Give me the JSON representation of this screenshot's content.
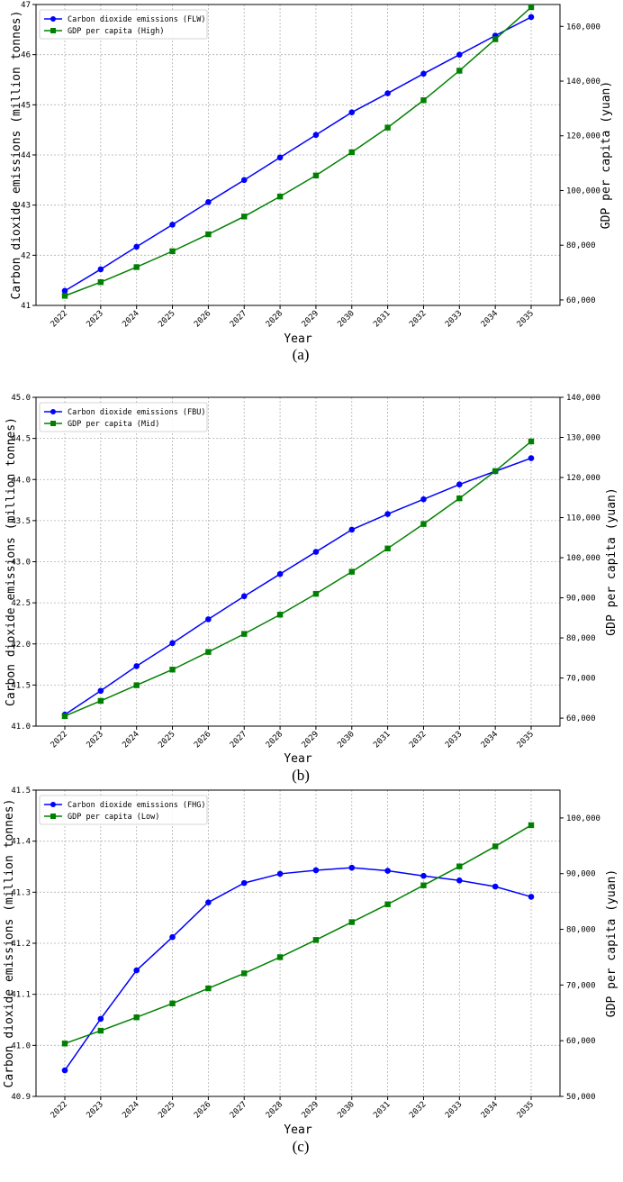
{
  "chart_data": [
    {
      "type": "line",
      "panel_label": "(a)",
      "xlabel": "Year",
      "ylabel": "Carbon dioxide emissions (million tonnes)",
      "y2label": "GDP per capita (yuan)",
      "categories": [
        "2022",
        "2023",
        "2024",
        "2025",
        "2026",
        "2027",
        "2028",
        "2029",
        "2030",
        "2031",
        "2032",
        "2033",
        "2034",
        "2035"
      ],
      "ylim": [
        41,
        47
      ],
      "yticks": [
        41,
        42,
        43,
        44,
        45,
        46,
        47
      ],
      "ytick_labels": [
        "41",
        "42",
        "43",
        "44",
        "45",
        "46",
        "47"
      ],
      "y2lim": [
        58000,
        168000
      ],
      "y2ticks": [
        60000,
        80000,
        100000,
        120000,
        140000,
        160000
      ],
      "y2tick_labels": [
        "60,000",
        "80,000",
        "100,000",
        "120,000",
        "140,000",
        "160,000"
      ],
      "grid": true,
      "legend_position": "top-left",
      "series": [
        {
          "name": "Carbon dioxide emissions (FLW)",
          "axis": "left",
          "marker": "circle",
          "color": "#0000ff",
          "values": [
            41.29,
            41.72,
            42.17,
            42.61,
            43.06,
            43.5,
            43.95,
            44.4,
            44.85,
            45.23,
            45.62,
            46.0,
            46.38,
            46.75
          ]
        },
        {
          "name": "GDP per capita (High)",
          "axis": "right",
          "marker": "square",
          "color": "#008000",
          "values": [
            61500,
            66500,
            72000,
            77800,
            84000,
            90500,
            97800,
            105500,
            114000,
            123000,
            133000,
            143800,
            155300,
            167000
          ]
        }
      ]
    },
    {
      "type": "line",
      "panel_label": "(b)",
      "xlabel": "Year",
      "ylabel": "Carbon dioxide emissions (million tonnes)",
      "y2label": "GDP per capita (yuan)",
      "categories": [
        "2022",
        "2023",
        "2024",
        "2025",
        "2026",
        "2027",
        "2028",
        "2029",
        "2030",
        "2031",
        "2032",
        "2033",
        "2034",
        "2035"
      ],
      "ylim": [
        41.0,
        45.0
      ],
      "yticks": [
        41.0,
        41.5,
        42.0,
        42.5,
        43.0,
        43.5,
        44.0,
        44.5,
        45.0
      ],
      "ytick_labels": [
        "41.0",
        "41.5",
        "42.0",
        "42.5",
        "43.0",
        "43.5",
        "44.0",
        "44.5",
        "45.0"
      ],
      "y2lim": [
        58000,
        140000
      ],
      "y2ticks": [
        60000,
        70000,
        80000,
        90000,
        100000,
        110000,
        120000,
        130000,
        140000
      ],
      "y2tick_labels": [
        "60,000",
        "70,000",
        "80,000",
        "90,000",
        "100,000",
        "110,000",
        "120,000",
        "130,000",
        "140,000"
      ],
      "grid": true,
      "legend_position": "top-left",
      "series": [
        {
          "name": "Carbon dioxide emissions (FBU)",
          "axis": "left",
          "marker": "circle",
          "color": "#0000ff",
          "values": [
            41.14,
            41.43,
            41.73,
            42.01,
            42.3,
            42.58,
            42.85,
            43.12,
            43.39,
            43.58,
            43.76,
            43.94,
            44.1,
            44.26
          ]
        },
        {
          "name": "GDP per capita (Mid)",
          "axis": "right",
          "marker": "square",
          "color": "#008000",
          "values": [
            60500,
            64300,
            68200,
            72100,
            76500,
            81000,
            85800,
            91000,
            96500,
            102300,
            108400,
            114800,
            121600,
            129000
          ]
        }
      ]
    },
    {
      "type": "line",
      "panel_label": "(c)",
      "xlabel": "Year",
      "ylabel": "Carbon dioxide emissions (million tonnes)",
      "y2label": "GDP per capita (yuan)",
      "categories": [
        "2022",
        "2023",
        "2024",
        "2025",
        "2026",
        "2027",
        "2028",
        "2029",
        "2030",
        "2031",
        "2032",
        "2033",
        "2034",
        "2035"
      ],
      "ylim": [
        40.9,
        41.5
      ],
      "yticks": [
        40.9,
        41.0,
        41.1,
        41.2,
        41.3,
        41.4,
        41.5
      ],
      "ytick_labels": [
        "40.9",
        "41.0",
        "41.1",
        "41.2",
        "41.3",
        "41.4",
        "41.5"
      ],
      "y2lim": [
        50000,
        105000
      ],
      "y2ticks": [
        50000,
        60000,
        70000,
        80000,
        90000,
        100000
      ],
      "y2tick_labels": [
        "50,000",
        "60,000",
        "70,000",
        "80,000",
        "90,000",
        "100,000"
      ],
      "grid": true,
      "legend_position": "top-left",
      "series": [
        {
          "name": "Carbon dioxide emissions (FHG)",
          "axis": "left",
          "marker": "circle",
          "color": "#0000ff",
          "values": [
            40.951,
            41.052,
            41.147,
            41.212,
            41.28,
            41.318,
            41.336,
            41.343,
            41.348,
            41.342,
            41.332,
            41.323,
            41.311,
            41.291
          ]
        },
        {
          "name": "GDP per capita (Low)",
          "axis": "right",
          "marker": "square",
          "color": "#008000",
          "values": [
            59500,
            61800,
            64200,
            66700,
            69400,
            72100,
            75000,
            78100,
            81300,
            84500,
            87900,
            91300,
            94900,
            98700
          ]
        }
      ]
    }
  ]
}
